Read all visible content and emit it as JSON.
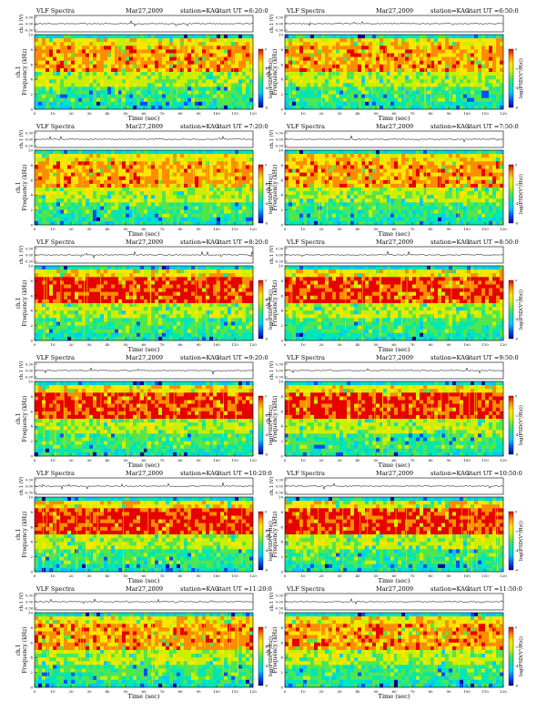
{
  "page": {
    "left_header": "VLF Spectra",
    "campaign": "Mar27,2009",
    "station": "station=KAG",
    "time_axis_label": "Time (sec)",
    "waveform_axis_label": "ch.1 (V)",
    "frequency_axis_label": "Frequency (kHz)",
    "panel_prefix": "ch.1",
    "colorbar_label": "log(PSD(V²/Hz))"
  },
  "colors": {
    "colormap": [
      "#0000a0",
      "#0050ff",
      "#00c8ff",
      "#00e6b4",
      "#50e650",
      "#c8f000",
      "#ffe600",
      "#ff8c00",
      "#e60000"
    ],
    "axis": "#000000",
    "waveform": "#000000"
  },
  "chart_data": [
    {
      "type": "heatmap",
      "subtitle": "start UT =6:20:0",
      "intensity_profile": "moderate",
      "tick_labels_x": [
        "0",
        "10",
        "20",
        "30",
        "40",
        "50",
        "60",
        "70",
        "80",
        "90",
        "100",
        "110",
        "120"
      ],
      "tick_labels_y": [
        "0",
        "2",
        "4",
        "6",
        "8",
        "10"
      ],
      "waveform_ticks": [
        "0.30",
        "0.00",
        "-0.30"
      ],
      "xlim": [
        0,
        120
      ],
      "ylim": [
        0,
        10
      ],
      "colorbar_ticks": [
        "0",
        "-2",
        "-4",
        "-6"
      ]
    },
    {
      "type": "heatmap",
      "subtitle": "start UT =6:50:0",
      "intensity_profile": "moderate",
      "tick_labels_x": [
        "0",
        "10",
        "20",
        "30",
        "40",
        "50",
        "60",
        "70",
        "80",
        "90",
        "100",
        "110",
        "120"
      ],
      "tick_labels_y": [
        "0",
        "2",
        "4",
        "6",
        "8",
        "10"
      ],
      "waveform_ticks": [
        "0.30",
        "0.00",
        "-0.30"
      ],
      "xlim": [
        0,
        120
      ],
      "ylim": [
        0,
        10
      ],
      "colorbar_ticks": [
        "0",
        "-2",
        "-4",
        "-6"
      ]
    },
    {
      "type": "heatmap",
      "subtitle": "start UT =7:20:0",
      "intensity_profile": "moderate",
      "tick_labels_x": [
        "0",
        "10",
        "20",
        "30",
        "40",
        "50",
        "60",
        "70",
        "80",
        "90",
        "100",
        "110",
        "120"
      ],
      "tick_labels_y": [
        "0",
        "2",
        "4",
        "6",
        "8",
        "10"
      ],
      "waveform_ticks": [
        "0.30",
        "0.00",
        "-0.30"
      ],
      "xlim": [
        0,
        120
      ],
      "ylim": [
        0,
        10
      ],
      "colorbar_ticks": [
        "0",
        "-2",
        "-4",
        "-6"
      ]
    },
    {
      "type": "heatmap",
      "subtitle": "start UT =7:50:0",
      "intensity_profile": "moderate",
      "tick_labels_x": [
        "0",
        "10",
        "20",
        "30",
        "40",
        "50",
        "60",
        "70",
        "80",
        "90",
        "100",
        "110",
        "120"
      ],
      "tick_labels_y": [
        "0",
        "2",
        "4",
        "6",
        "8",
        "10"
      ],
      "waveform_ticks": [
        "0.30",
        "0.00",
        "-0.30"
      ],
      "xlim": [
        0,
        120
      ],
      "ylim": [
        0,
        10
      ],
      "colorbar_ticks": [
        "0",
        "-2",
        "-4",
        "-6"
      ]
    },
    {
      "type": "heatmap",
      "subtitle": "start UT =8:20:0",
      "intensity_profile": "strong",
      "tick_labels_x": [
        "0",
        "10",
        "20",
        "30",
        "40",
        "50",
        "60",
        "70",
        "80",
        "90",
        "100",
        "110",
        "120"
      ],
      "tick_labels_y": [
        "0",
        "2",
        "4",
        "6",
        "8",
        "10"
      ],
      "waveform_ticks": [
        "0.30",
        "0.00",
        "-0.30"
      ],
      "xlim": [
        0,
        120
      ],
      "ylim": [
        0,
        10
      ],
      "colorbar_ticks": [
        "0",
        "-2",
        "-4",
        "-6"
      ]
    },
    {
      "type": "heatmap",
      "subtitle": "start UT =8:50:0",
      "intensity_profile": "strong",
      "tick_labels_x": [
        "0",
        "10",
        "20",
        "30",
        "40",
        "50",
        "60",
        "70",
        "80",
        "90",
        "100",
        "110",
        "120"
      ],
      "tick_labels_y": [
        "0",
        "2",
        "4",
        "6",
        "8",
        "10"
      ],
      "waveform_ticks": [
        "0.30",
        "0.00",
        "-0.30"
      ],
      "xlim": [
        0,
        120
      ],
      "ylim": [
        0,
        10
      ],
      "colorbar_ticks": [
        "0",
        "-2",
        "-4",
        "-6"
      ]
    },
    {
      "type": "heatmap",
      "subtitle": "start UT =9:20:0",
      "intensity_profile": "strong",
      "tick_labels_x": [
        "0",
        "10",
        "20",
        "30",
        "40",
        "50",
        "60",
        "70",
        "80",
        "90",
        "100",
        "110",
        "120"
      ],
      "tick_labels_y": [
        "0",
        "2",
        "4",
        "6",
        "8",
        "10"
      ],
      "waveform_ticks": [
        "0.30",
        "0.00",
        "-0.30"
      ],
      "xlim": [
        0,
        120
      ],
      "ylim": [
        0,
        10
      ],
      "colorbar_ticks": [
        "0",
        "-2",
        "-4",
        "-6"
      ]
    },
    {
      "type": "heatmap",
      "subtitle": "start UT =9:50:0",
      "intensity_profile": "strong",
      "tick_labels_x": [
        "0",
        "10",
        "20",
        "30",
        "40",
        "50",
        "60",
        "70",
        "80",
        "90",
        "100",
        "110",
        "120"
      ],
      "tick_labels_y": [
        "0",
        "2",
        "4",
        "6",
        "8",
        "10"
      ],
      "waveform_ticks": [
        "0.30",
        "0.00",
        "-0.30"
      ],
      "xlim": [
        0,
        120
      ],
      "ylim": [
        0,
        10
      ],
      "colorbar_ticks": [
        "0",
        "-2",
        "-4",
        "-6"
      ]
    },
    {
      "type": "heatmap",
      "subtitle": "start UT =10:20:0",
      "intensity_profile": "strong",
      "tick_labels_x": [
        "0",
        "10",
        "20",
        "30",
        "40",
        "50",
        "60",
        "70",
        "80",
        "90",
        "100",
        "110",
        "120"
      ],
      "tick_labels_y": [
        "0",
        "2",
        "4",
        "6",
        "8",
        "10"
      ],
      "waveform_ticks": [
        "0.30",
        "0.00",
        "-0.30"
      ],
      "xlim": [
        0,
        120
      ],
      "ylim": [
        0,
        10
      ],
      "colorbar_ticks": [
        "0",
        "-2",
        "-4",
        "-6"
      ]
    },
    {
      "type": "heatmap",
      "subtitle": "start UT =10:50:0",
      "intensity_profile": "strong",
      "tick_labels_x": [
        "0",
        "10",
        "20",
        "30",
        "40",
        "50",
        "60",
        "70",
        "80",
        "90",
        "100",
        "110",
        "120"
      ],
      "tick_labels_y": [
        "0",
        "2",
        "4",
        "6",
        "8",
        "10"
      ],
      "waveform_ticks": [
        "0.30",
        "0.00",
        "-0.30"
      ],
      "xlim": [
        0,
        120
      ],
      "ylim": [
        0,
        10
      ],
      "colorbar_ticks": [
        "0",
        "-2",
        "-4",
        "-6"
      ]
    },
    {
      "type": "heatmap",
      "subtitle": "start UT =11:20:0",
      "intensity_profile": "moderate",
      "tick_labels_x": [
        "0",
        "10",
        "20",
        "30",
        "40",
        "50",
        "60",
        "70",
        "80",
        "90",
        "100",
        "110",
        "120"
      ],
      "tick_labels_y": [
        "0",
        "2",
        "4",
        "6",
        "8",
        "10"
      ],
      "waveform_ticks": [
        "0.30",
        "0.00",
        "-0.30"
      ],
      "xlim": [
        0,
        120
      ],
      "ylim": [
        0,
        10
      ],
      "colorbar_ticks": [
        "0",
        "-2",
        "-4",
        "-6"
      ]
    },
    {
      "type": "heatmap",
      "subtitle": "start UT =11:50:0",
      "intensity_profile": "moderate",
      "tick_labels_x": [
        "0",
        "10",
        "20",
        "30",
        "40",
        "50",
        "60",
        "70",
        "80",
        "90",
        "100",
        "110",
        "120"
      ],
      "tick_labels_y": [
        "0",
        "2",
        "4",
        "6",
        "8",
        "10"
      ],
      "waveform_ticks": [
        "0.30",
        "0.00",
        "-0.30"
      ],
      "xlim": [
        0,
        120
      ],
      "ylim": [
        0,
        10
      ],
      "colorbar_ticks": [
        "0",
        "-2",
        "-4",
        "-6"
      ]
    }
  ]
}
